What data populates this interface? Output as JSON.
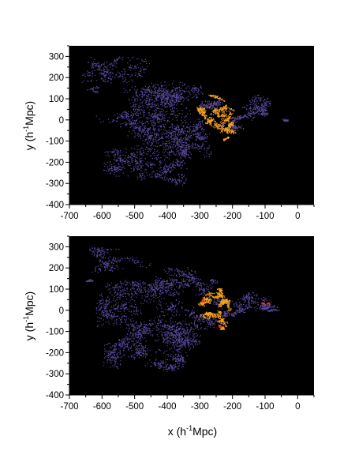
{
  "chart_data": [
    {
      "type": "scatter",
      "panel": "top",
      "xlabel": "",
      "ylabel_parts": [
        "y (h",
        "-1",
        "Mpc)"
      ],
      "xlim": [
        -700,
        50
      ],
      "ylim": [
        -400,
        350
      ],
      "x_ticks": [
        -700,
        -600,
        -500,
        -400,
        -300,
        -200,
        -100,
        0
      ],
      "y_ticks": [
        -400,
        -300,
        -200,
        -100,
        0,
        100,
        200,
        300
      ],
      "background": "#000000",
      "colors": {
        "purple": "#5a4aa0",
        "orange": "#f5a21e",
        "red": "#e53b2a"
      },
      "series": [
        {
          "color_key": "purple",
          "seed": 11,
          "clusters": [
            [
              -560,
              230,
              110,
              70
            ],
            [
              -640,
              140,
              40,
              20
            ],
            [
              -470,
              110,
              120,
              90
            ],
            [
              -380,
              140,
              90,
              70
            ],
            [
              -300,
              90,
              70,
              50
            ],
            [
              -170,
              60,
              90,
              60
            ],
            [
              -110,
              30,
              60,
              30
            ],
            [
              -520,
              -10,
              100,
              90
            ],
            [
              -420,
              -60,
              110,
              120
            ],
            [
              -330,
              -140,
              80,
              90
            ],
            [
              -500,
              -180,
              100,
              90
            ],
            [
              -420,
              -250,
              80,
              60
            ],
            [
              -280,
              -50,
              60,
              60
            ],
            [
              -200,
              -30,
              60,
              50
            ],
            [
              -50,
              5,
              40,
              12
            ]
          ]
        },
        {
          "color_key": "orange",
          "seed": 23,
          "clusters": [
            [
              -250,
              110,
              25,
              25
            ],
            [
              -235,
              60,
              40,
              35
            ],
            [
              -230,
              20,
              30,
              30
            ],
            [
              -225,
              -40,
              35,
              40
            ],
            [
              -230,
              -90,
              20,
              20
            ],
            [
              -290,
              40,
              30,
              40
            ],
            [
              -270,
              -10,
              30,
              30
            ],
            [
              -210,
              -10,
              25,
              25
            ]
          ]
        },
        {
          "color_key": "red",
          "seed": 37,
          "clusters": []
        }
      ]
    },
    {
      "type": "scatter",
      "panel": "bottom",
      "xlabel_parts": [
        "x (h",
        "-1",
        "Mpc)"
      ],
      "ylabel_parts": [
        "y (h",
        "-1",
        "Mpc)"
      ],
      "xlim": [
        -700,
        50
      ],
      "ylim": [
        -400,
        350
      ],
      "x_ticks": [
        -700,
        -600,
        -500,
        -400,
        -300,
        -200,
        -100,
        0
      ],
      "y_ticks": [
        -400,
        -300,
        -200,
        -100,
        0,
        100,
        200,
        300
      ],
      "background": "#000000",
      "colors": {
        "purple": "#5a4aa0",
        "orange": "#f5a21e",
        "red": "#e53b2a"
      },
      "series": [
        {
          "color_key": "purple",
          "seed": 53,
          "clusters": [
            [
              -540,
              240,
              100,
              60
            ],
            [
              -640,
              140,
              40,
              20
            ],
            [
              -470,
              120,
              120,
              90
            ],
            [
              -380,
              150,
              90,
              60
            ],
            [
              -300,
              100,
              60,
              50
            ],
            [
              -170,
              60,
              90,
              60
            ],
            [
              -100,
              35,
              70,
              30
            ],
            [
              -520,
              -10,
              100,
              90
            ],
            [
              -420,
              -60,
              110,
              120
            ],
            [
              -330,
              -140,
              80,
              90
            ],
            [
              -500,
              -190,
              100,
              90
            ],
            [
              -420,
              -260,
              80,
              60
            ],
            [
              -280,
              -50,
              60,
              60
            ],
            [
              -200,
              -30,
              60,
              50
            ],
            [
              -60,
              0,
              40,
              12
            ]
          ]
        },
        {
          "color_key": "orange",
          "seed": 71,
          "clusters": [
            [
              -245,
              100,
              25,
              20
            ],
            [
              -260,
              60,
              40,
              30
            ],
            [
              -230,
              20,
              30,
              30
            ],
            [
              -240,
              -40,
              35,
              40
            ],
            [
              -235,
              -90,
              20,
              20
            ],
            [
              -295,
              30,
              30,
              35
            ],
            [
              -270,
              -10,
              30,
              30
            ],
            [
              -210,
              40,
              25,
              25
            ]
          ]
        },
        {
          "color_key": "red",
          "seed": 89,
          "clusters": [
            [
              -240,
              -75,
              10,
              12
            ],
            [
              -110,
              35,
              10,
              4
            ],
            [
              -90,
              35,
              6,
              4
            ],
            [
              -290,
              45,
              7,
              8
            ]
          ]
        }
      ]
    }
  ]
}
